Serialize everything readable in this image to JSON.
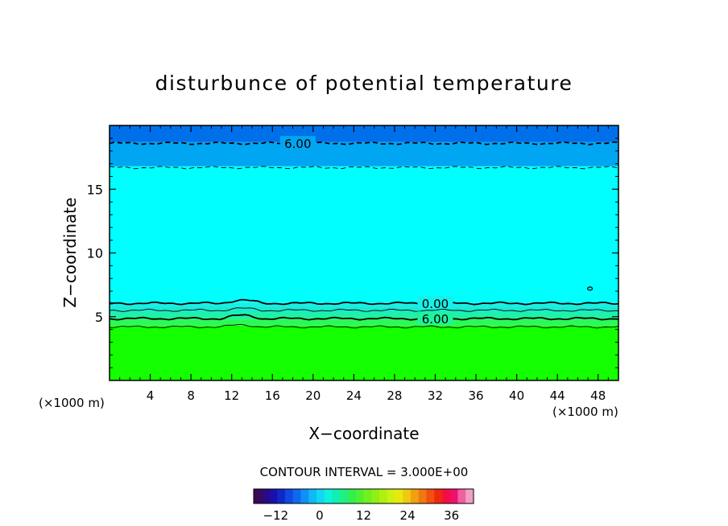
{
  "chart_data": {
    "type": "heatmap",
    "title": "disturbunce of potential temperature",
    "xlabel": "X−coordinate",
    "ylabel": "Z−coordinate",
    "x_unit_left": "(×1000 m)",
    "x_unit_right": "(×1000 m)",
    "xlim": [
      0,
      50
    ],
    "ylim": [
      0,
      20
    ],
    "x_ticks": [
      4,
      8,
      12,
      16,
      20,
      24,
      28,
      32,
      36,
      40,
      44,
      48
    ],
    "y_ticks": [
      5,
      10,
      15
    ],
    "bands": [
      {
        "z0": 0,
        "z1": 4.3,
        "color": "#14ff00"
      },
      {
        "z0": 4.3,
        "z1": 4.8,
        "color": "#2cf958"
      },
      {
        "z0": 4.8,
        "z1": 5.3,
        "color": "#1ff3a0"
      },
      {
        "z0": 5.3,
        "z1": 5.8,
        "color": "#1aebd0"
      },
      {
        "z0": 5.8,
        "z1": 6.1,
        "color": "#16f0e8"
      },
      {
        "z0": 6.1,
        "z1": 16.8,
        "color": "#00ffff"
      },
      {
        "z0": 16.8,
        "z1": 18.7,
        "color": "#00a6f2"
      },
      {
        "z0": 18.7,
        "z1": 20,
        "color": "#0070ea"
      }
    ],
    "contours": [
      {
        "level": "6.00",
        "z": 18.6,
        "style": "dashed",
        "weight": "bold",
        "label_x": 18.5
      },
      {
        "level": "",
        "z": 16.7,
        "style": "dashed",
        "weight": "thin",
        "label_x": null
      },
      {
        "level": "0.00",
        "z": 6.05,
        "style": "solid",
        "weight": "bold",
        "label_x": 32
      },
      {
        "level": "",
        "z": 5.5,
        "style": "solid",
        "weight": "thin",
        "label_x": null
      },
      {
        "level": "6.00",
        "z": 4.85,
        "style": "solid",
        "weight": "bold",
        "label_x": 32
      },
      {
        "level": "",
        "z": 4.2,
        "style": "solid",
        "weight": "thin",
        "label_x": null
      }
    ],
    "contour_interval": "CONTOUR INTERVAL = 3.000E+00",
    "colorbar": {
      "min": -18,
      "max": 42,
      "step": 3,
      "ticks": [
        -12,
        0,
        12,
        24,
        36
      ],
      "colors": [
        "#3a0a55",
        "#2a0a80",
        "#1a10a8",
        "#1028c8",
        "#1048e0",
        "#1068ee",
        "#1090f4",
        "#10b8f6",
        "#10d8f0",
        "#10f0e0",
        "#10f0b0",
        "#20f080",
        "#30f050",
        "#50f030",
        "#70f020",
        "#90f010",
        "#b0f010",
        "#d0f010",
        "#e8e810",
        "#f0c810",
        "#f0a010",
        "#f07810",
        "#f05010",
        "#f02810",
        "#f01040",
        "#f01070",
        "#f060a0",
        "#f0a0c0"
      ]
    }
  }
}
